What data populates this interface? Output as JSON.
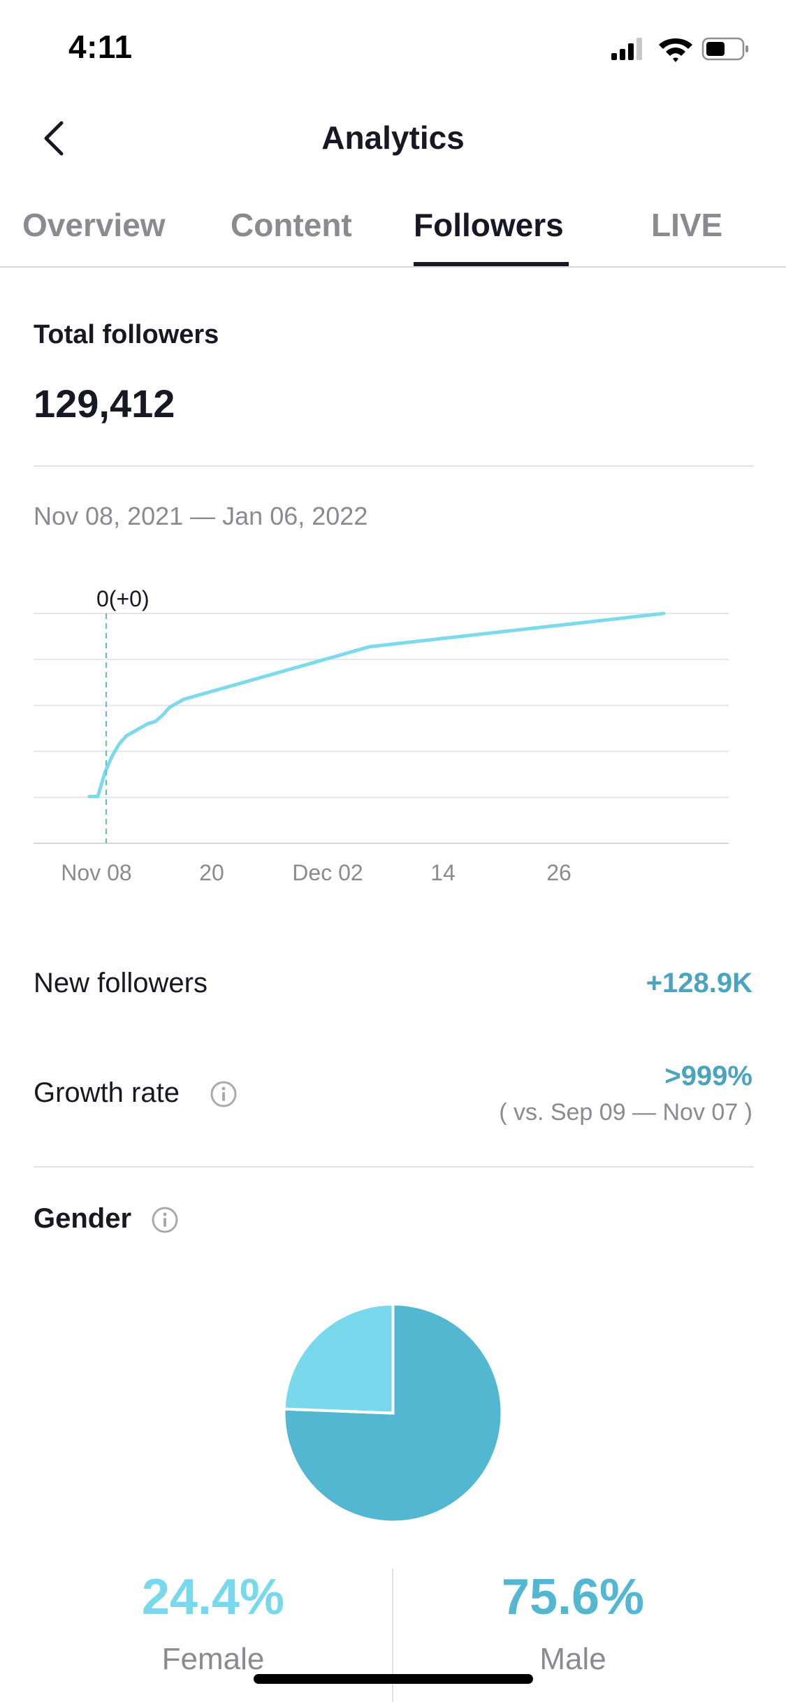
{
  "status_bar": {
    "time": "4:11",
    "icons": [
      "signal-icon",
      "wifi-icon",
      "battery-icon"
    ]
  },
  "header": {
    "title": "Analytics",
    "back_icon": "chevron-left-icon"
  },
  "tabs": [
    {
      "label": "Overview",
      "active": false
    },
    {
      "label": "Content",
      "active": false
    },
    {
      "label": "Followers",
      "active": true
    },
    {
      "label": "LIVE",
      "active": false
    }
  ],
  "total_followers": {
    "label": "Total followers",
    "value": "129,412"
  },
  "date_range": "Nov 08, 2021 — Jan 06, 2022",
  "chart_data": {
    "type": "line",
    "x_ticks": [
      "Nov 08",
      "20",
      "Dec 02",
      "14",
      "26"
    ],
    "annotation": "0(+0)",
    "series": [
      {
        "values": [
          0,
          0.06,
          0.1,
          0.13,
          0.15,
          0.16,
          0.17,
          0.18,
          0.185,
          0.2,
          0.22,
          0.23,
          0.24,
          0.245,
          0.25,
          0.255,
          0.26,
          0.265,
          0.27,
          0.275,
          0.28,
          0.285,
          0.29,
          0.295,
          0.3,
          0.305,
          0.31,
          0.315,
          0.32,
          0.325,
          0.33,
          0.335,
          0.34,
          0.345,
          0.35,
          0.355,
          0.36,
          0.365,
          0.37,
          0.372,
          0.374,
          0.376,
          0.378,
          0.38,
          0.382,
          0.384,
          0.386,
          0.388,
          0.39,
          0.392,
          0.394,
          0.396,
          0.398,
          0.4,
          0.402,
          0.404,
          0.406,
          0.408,
          0.41,
          0.412,
          0.414,
          0.416,
          0.418,
          0.42,
          0.422,
          0.424,
          0.426,
          0.428,
          0.43,
          0.432,
          0.434,
          0.436,
          0.438,
          0.44,
          0.442,
          0.444,
          0.446,
          0.448,
          0.45,
          0.452
        ],
        "color": "#7dd9ec"
      }
    ],
    "grid": true,
    "gridlines": 5
  },
  "stats": {
    "new_followers": {
      "label": "New followers",
      "value": "+128.9K"
    },
    "growth_rate": {
      "label": "Growth rate",
      "value": ">999%",
      "comparison": "( vs. Sep 09 — Nov 07 )",
      "info_icon": "info-icon"
    }
  },
  "gender": {
    "label": "Gender",
    "info_icon": "info-icon",
    "female": {
      "label": "Female",
      "value": "24.4%",
      "share": 0.244,
      "color": "#79d9ec"
    },
    "male": {
      "label": "Male",
      "value": "75.6%",
      "share": 0.756,
      "color": "#53b7d2"
    }
  }
}
